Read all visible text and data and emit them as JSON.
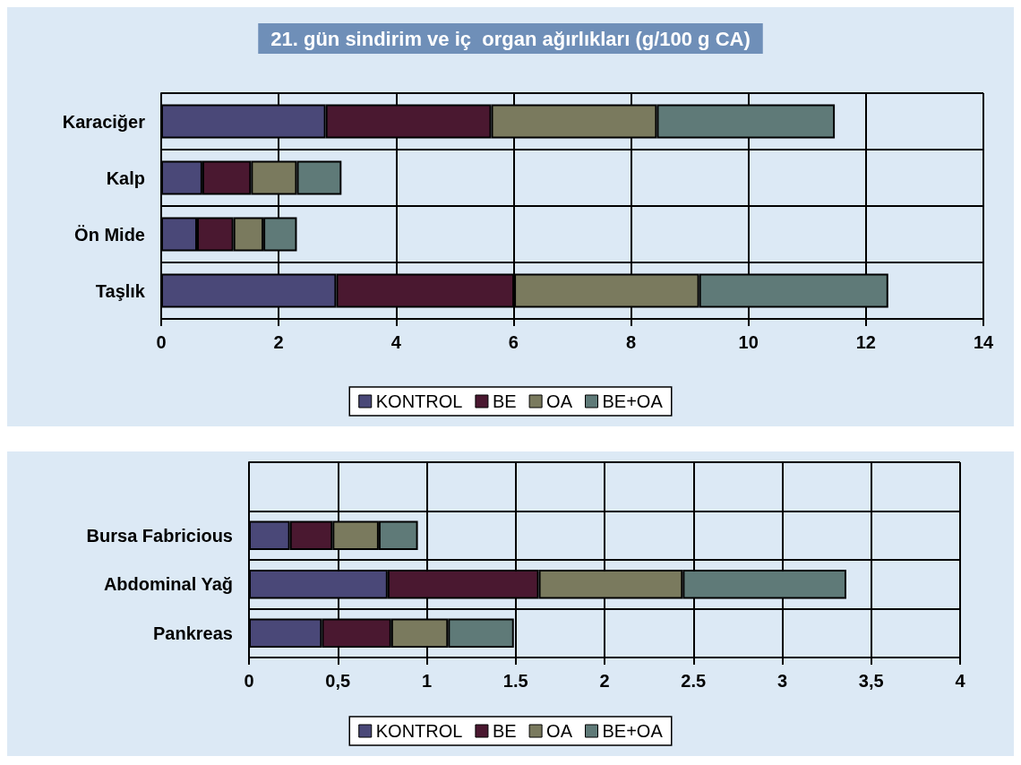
{
  "chart_data": [
    {
      "type": "bar",
      "orientation": "horizontal",
      "stacked": true,
      "title": "21. gün sindirim ve iç  organ ağırlıkları (g/100 g CA)",
      "categories": [
        "Karaciğer",
        "Kalp",
        "Ön Mide",
        "Taşlık"
      ],
      "series": [
        {
          "name": "KONTROL",
          "color": "#4a4878",
          "values": [
            2.8,
            0.7,
            0.61,
            2.98
          ]
        },
        {
          "name": "BE",
          "color": "#4a1830",
          "values": [
            2.82,
            0.83,
            0.62,
            3.03
          ]
        },
        {
          "name": "OA",
          "color": "#7a7a5e",
          "values": [
            2.82,
            0.78,
            0.51,
            3.15
          ]
        },
        {
          "name": "BE+OA",
          "color": "#5f7a78",
          "values": [
            3.03,
            0.76,
            0.57,
            3.22
          ]
        }
      ],
      "xlim": [
        0,
        14
      ],
      "xticks": [
        0,
        2,
        4,
        6,
        8,
        10,
        12,
        14
      ],
      "grid": true,
      "legend": "bottom"
    },
    {
      "type": "bar",
      "orientation": "horizontal",
      "stacked": true,
      "categories": [
        null,
        "Bursa Fabricious",
        "Abdominal Yağ",
        "Pankreas"
      ],
      "series": [
        {
          "name": "KONTROL",
          "color": "#4a4878",
          "values": [
            null,
            0.23,
            0.78,
            0.41
          ]
        },
        {
          "name": "BE",
          "color": "#4a1830",
          "values": [
            null,
            0.24,
            0.85,
            0.39
          ]
        },
        {
          "name": "OA",
          "color": "#7a7a5e",
          "values": [
            null,
            0.26,
            0.81,
            0.32
          ]
        },
        {
          "name": "BE+OA",
          "color": "#5f7a78",
          "values": [
            null,
            0.22,
            0.92,
            0.37
          ]
        }
      ],
      "xlim": [
        0,
        4
      ],
      "xticks": [
        0,
        {
          "value": 0.5,
          "label": "0,5"
        },
        1,
        {
          "value": 1.5,
          "label": "1.5"
        },
        2,
        {
          "value": 2.5,
          "label": "2.5"
        },
        3,
        {
          "value": 3.5,
          "label": "3,5"
        },
        4
      ],
      "grid": true,
      "legend": "bottom"
    }
  ]
}
